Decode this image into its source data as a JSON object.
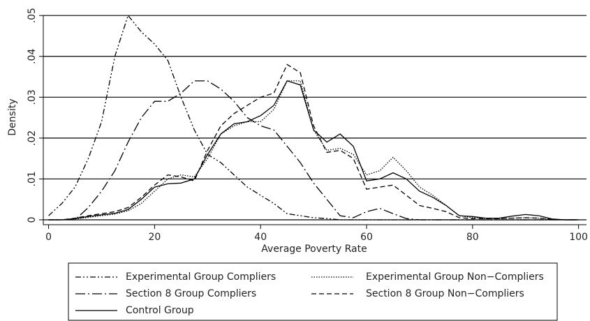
{
  "chart_data": {
    "type": "line",
    "xlabel": "Average Poverty Rate",
    "ylabel": "Density",
    "x": [
      0,
      2.5,
      5,
      7.5,
      10,
      12.5,
      15,
      17.5,
      20,
      22.5,
      25,
      27.5,
      30,
      32.5,
      35,
      37.5,
      40,
      42.5,
      45,
      47.5,
      50,
      52.5,
      55,
      57.5,
      60,
      62.5,
      65,
      67.5,
      70,
      72.5,
      75,
      77.5,
      80,
      82.5,
      85,
      87.5,
      90,
      92.5,
      95,
      97.5,
      100
    ],
    "series": [
      {
        "name": "Experimental Group Compliers",
        "color": "#000",
        "dash": "dash-dot-dot",
        "values": [
          0.001,
          0.004,
          0.008,
          0.015,
          0.024,
          0.04,
          0.05,
          0.046,
          0.043,
          0.039,
          0.03,
          0.022,
          0.016,
          0.014,
          0.011,
          0.008,
          0.006,
          0.004,
          0.0015,
          0.001,
          0.0005,
          0.0003,
          0,
          0,
          0,
          0,
          0,
          0,
          0,
          0,
          0,
          0,
          0,
          0,
          0,
          0,
          0,
          0,
          0,
          0,
          0
        ]
      },
      {
        "name": "Experimental Group Non−Compliers",
        "color": "#000",
        "dash": "dotted",
        "values": [
          0,
          0,
          0.0002,
          0.0006,
          0.001,
          0.0014,
          0.0022,
          0.004,
          0.007,
          0.01,
          0.011,
          0.0105,
          0.015,
          0.021,
          0.023,
          0.024,
          0.024,
          0.027,
          0.034,
          0.034,
          0.022,
          0.017,
          0.0175,
          0.016,
          0.011,
          0.012,
          0.0153,
          0.012,
          0.008,
          0.006,
          0.0035,
          0.001,
          0.0005,
          0.0003,
          0.0003,
          0.0004,
          0.0005,
          0.0004,
          0.0001,
          0,
          0
        ]
      },
      {
        "name": "Section 8 Group Compliers",
        "color": "#000",
        "dash": "long-dash-dot",
        "values": [
          0,
          0,
          0,
          0.003,
          0.007,
          0.012,
          0.019,
          0.025,
          0.029,
          0.029,
          0.031,
          0.034,
          0.034,
          0.032,
          0.029,
          0.025,
          0.023,
          0.022,
          0.018,
          0.014,
          0.009,
          0.005,
          0.001,
          0.0005,
          0.002,
          0.0028,
          0.0015,
          0.0003,
          0,
          0,
          0,
          0,
          0,
          0,
          0,
          0,
          0,
          0,
          0,
          0,
          0
        ]
      },
      {
        "name": "Section 8 Group Non−Compliers",
        "color": "#000",
        "dash": "dashed",
        "values": [
          0,
          0,
          0.0004,
          0.001,
          0.0015,
          0.002,
          0.003,
          0.0055,
          0.0085,
          0.011,
          0.0105,
          0.0095,
          0.017,
          0.023,
          0.026,
          0.028,
          0.03,
          0.031,
          0.038,
          0.036,
          0.023,
          0.0165,
          0.017,
          0.015,
          0.0075,
          0.008,
          0.0085,
          0.006,
          0.0035,
          0.0028,
          0.002,
          0.0005,
          0.0003,
          0.0003,
          0.0003,
          0.0004,
          0.0005,
          0.0004,
          0.0001,
          0,
          0
        ]
      },
      {
        "name": "Control Group",
        "color": "#000",
        "dash": "solid",
        "values": [
          0,
          0,
          0.0003,
          0.0008,
          0.0012,
          0.0016,
          0.0025,
          0.005,
          0.008,
          0.0088,
          0.009,
          0.01,
          0.016,
          0.021,
          0.0235,
          0.024,
          0.0255,
          0.028,
          0.034,
          0.033,
          0.022,
          0.019,
          0.021,
          0.018,
          0.0095,
          0.01,
          0.0115,
          0.01,
          0.007,
          0.0055,
          0.0035,
          0.001,
          0.0008,
          0.0004,
          0.0004,
          0.0009,
          0.0013,
          0.001,
          0.0002,
          0,
          0
        ]
      }
    ],
    "xlim": [
      -1,
      101.5
    ],
    "ylim": [
      -0.0012,
      0.0514
    ],
    "xticks": [
      0,
      20,
      40,
      60,
      80,
      100
    ],
    "yticks": [
      0,
      {
        "value": 0.01,
        "label": ".01"
      },
      {
        "value": 0.02,
        "label": ".02"
      },
      {
        "value": 0.03,
        "label": ".03"
      },
      {
        "value": 0.04,
        "label": ".04"
      },
      {
        "value": 0.05,
        "label": ".05"
      }
    ],
    "grid": true
  }
}
